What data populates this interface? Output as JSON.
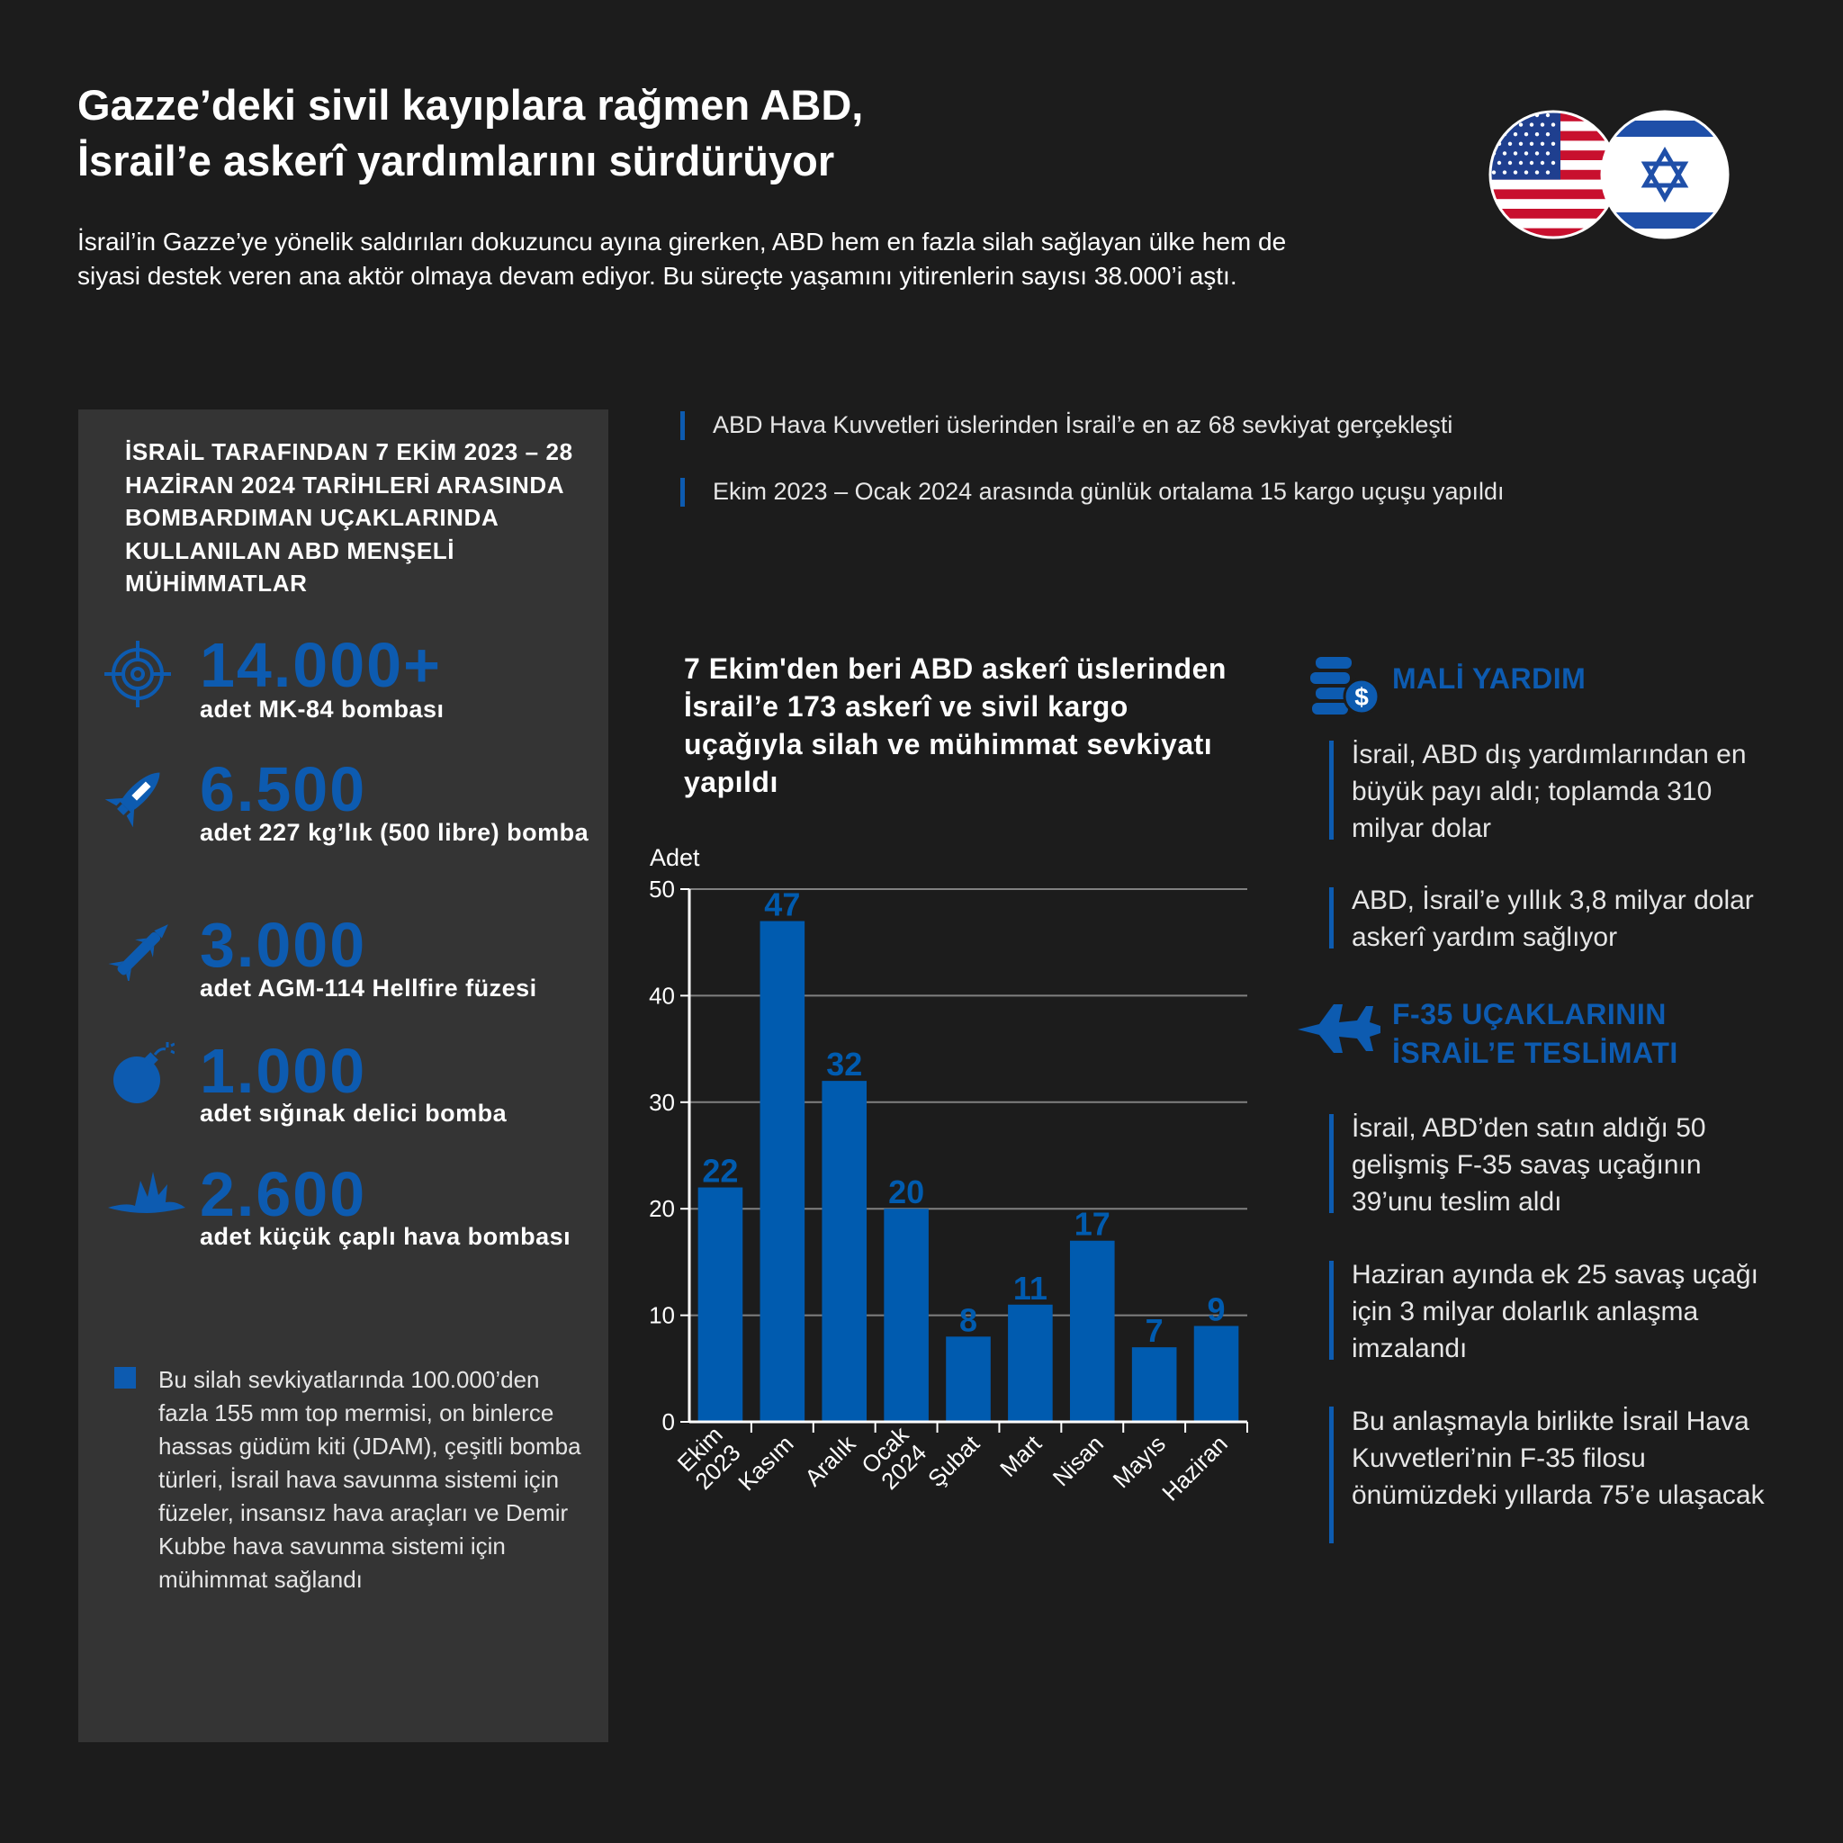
{
  "header": {
    "title_line1": "Gazze’deki sivil kayıplara rağmen ABD,",
    "title_line2": "İsrail’e askerî yardımlarını sürdürüyor",
    "intro": "İsrail’in Gazze’ye yönelik saldırıları dokuzuncu ayına girerken, ABD hem en fazla silah sağlayan ülke hem de siyasi destek veren ana aktör olmaya devam ediyor. Bu süreçte yaşamını yitirenlerin sayısı 38.000’i aştı."
  },
  "flags": {
    "left": "usa-flag-icon",
    "right": "israel-flag-icon"
  },
  "left_panel": {
    "title": "İSRAİL TARAFINDAN 7 EKİM 2023 – 28 HAZİRAN 2024 TARİHLERİ ARASINDA BOMBARDIMAN UÇAKLARINDA KULLANILAN ABD MENŞELİ MÜHİMMATLAR",
    "stats": [
      {
        "value": "14.000+",
        "label": "adet MK-84 bombası",
        "icon": "target-icon"
      },
      {
        "value": "6.500",
        "label": "adet 227 kg’lık (500 libre) bomba",
        "icon": "bomb-icon"
      },
      {
        "value": "3.000",
        "label": "adet AGM-114 Hellfire füzesi",
        "icon": "missile-icon"
      },
      {
        "value": "1.000",
        "label": "adet sığınak delici bomba",
        "icon": "round-bomb-icon"
      },
      {
        "value": "2.600",
        "label": "adet küçük çaplı hava bombası",
        "icon": "explosion-icon"
      }
    ],
    "footnote": "Bu silah sevkiyatlarında 100.000’den fazla 155 mm top mermisi, on binlerce hassas güdüm kiti (JDAM), çeşitli bomba türleri, İsrail hava savunma sistemi için füzeler, insansız hava araçları ve Demir Kubbe hava savunma sistemi için mühimmat sağlandı"
  },
  "top_notes": [
    "ABD Hava Kuvvetleri üslerinden İsrail’e en az 68 sevkiyat gerçekleşti",
    "Ekim 2023 – Ocak 2024 arasında günlük ortalama 15 kargo uçuşu yapıldı"
  ],
  "chart_data": {
    "type": "bar",
    "title": "7 Ekim'den beri ABD askerî üslerinden İsrail’e 173 askerî ve sivil kargo uçağıyla silah ve mühimmat sevkiyatı yapıldı",
    "ylabel": "Adet",
    "xlabel": "",
    "ylim": [
      0,
      50
    ],
    "yticks": [
      0,
      10,
      20,
      30,
      40,
      50
    ],
    "grid": true,
    "categories": [
      "Ekim 2023",
      "Kasım",
      "Aralık",
      "Ocak 2024",
      "Şubat",
      "Mart",
      "Nisan",
      "Mayıs",
      "Haziran"
    ],
    "values": [
      22,
      47,
      32,
      20,
      8,
      11,
      17,
      7,
      9
    ],
    "bar_color": "#005baf",
    "label_color": "#005baf"
  },
  "right_panel": {
    "financial": {
      "heading": "MALİ YARDIM",
      "icon": "coins-dollar-icon",
      "notes": [
        "İsrail, ABD dış yardımlarından en büyük payı aldı; toplamda 310 milyar dolar",
        "ABD, İsrail’e yıllık 3,8 milyar dolar askerî yardım sağlıyor"
      ]
    },
    "f35": {
      "heading_line1": "F-35 UÇAKLARININ",
      "heading_line2": "İSRAİL’E TESLİMATI",
      "icon": "fighter-jet-icon",
      "notes": [
        "İsrail, ABD’den satın aldığı 50 gelişmiş F-35 savaş uçağının 39’unu teslim aldı",
        "Haziran ayında ek 25 savaş uçağı için 3 milyar dolarlık anlaşma imzalandı",
        "Bu anlaşmayla birlikte İsrail Hava Kuvvetleri’nin F-35 filosu önümüzdeki yıllarda 75’e ulaşacak"
      ]
    }
  },
  "colors": {
    "accent": "#0d5bb0",
    "background": "#1c1c1c",
    "panel": "#343434"
  }
}
